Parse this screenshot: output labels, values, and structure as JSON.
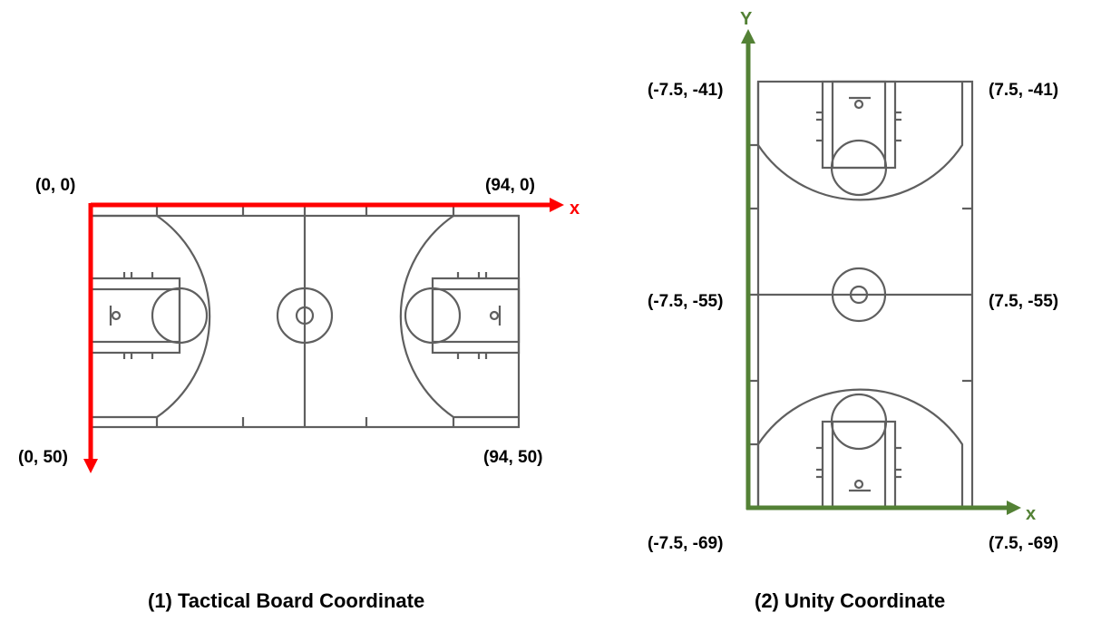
{
  "tactical": {
    "caption": "(1) Tactical Board Coordinate",
    "axis_color": "#ff0000",
    "x_axis_label": "x",
    "corners": {
      "top_left": "(0, 0)",
      "top_right": "(94, 0)",
      "bottom_left": "(0, 50)",
      "bottom_right": "(94, 50)"
    }
  },
  "unity": {
    "caption": "(2) Unity Coordinate",
    "axis_color": "#538135",
    "x_axis_label": "x",
    "y_axis_label": "Y",
    "corners": {
      "top_left": "(-7.5, -41)",
      "top_right": "(7.5, -41)",
      "mid_left": "(-7.5, -55)",
      "mid_right": "(7.5, -55)",
      "bottom_left": "(-7.5, -69)",
      "bottom_right": "(7.5, -69)"
    }
  },
  "line_color": "#5f5f5f"
}
